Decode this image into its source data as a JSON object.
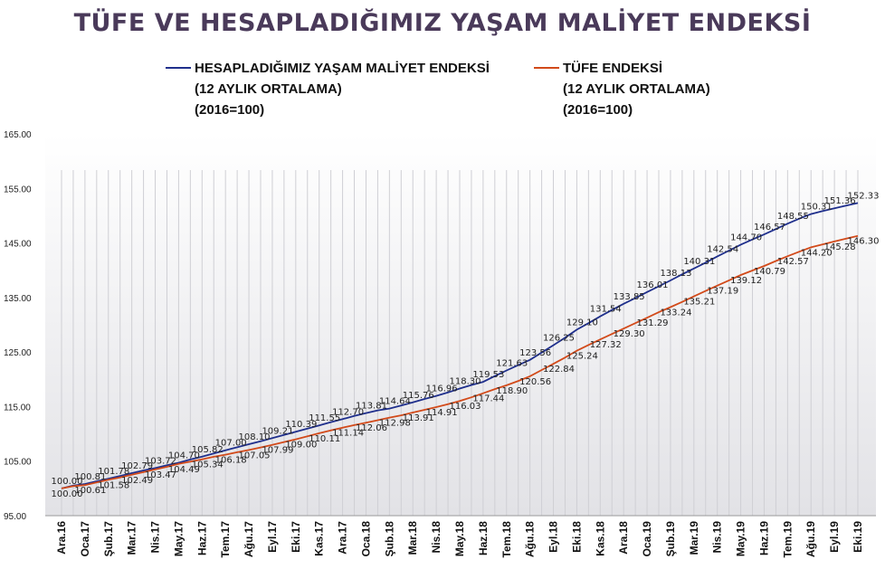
{
  "title": "TÜFE VE HESAPLADIĞIMIZ YAŞAM MALİYET ENDEKSİ",
  "colors": {
    "series_a": "#1f2f8c",
    "series_b": "#d24a1a",
    "title": "#4a3a5a"
  },
  "legend": {
    "series_a": {
      "line1": "HESAPLADIĞIMIZ YAŞAM MALİYET ENDEKSİ",
      "line2": "(12 AYLIK ORTALAMA)",
      "line3": "(2016=100)"
    },
    "series_b": {
      "line1": "TÜFE ENDEKSİ",
      "line2": "(12 AYLIK ORTALAMA)",
      "line3": "(2016=100)"
    }
  },
  "chart_data": {
    "type": "line",
    "title": "TÜFE VE HESAPLADIĞIMIZ YAŞAM MALİYET ENDEKSİ",
    "ylim": [
      95,
      165
    ],
    "yticks": [
      "95.00",
      "105.00",
      "115.00",
      "125.00",
      "135.00",
      "145.00",
      "155.00",
      "165.00"
    ],
    "ytick_values": [
      95,
      105,
      115,
      125,
      135,
      145,
      155,
      165
    ],
    "x_tick_labels": [
      "Ara.16",
      "Oca.17",
      "Şub.17",
      "Mar.17",
      "Nis.17",
      "May.17",
      "Haz.17",
      "Tem.17",
      "Ağu.17",
      "Eyl.17",
      "Eki.17",
      "Kas.17",
      "Ara.17",
      "Oca.18",
      "Şub.18",
      "Mar.18",
      "Nis.18",
      "May.18",
      "Haz.18",
      "Tem.18",
      "Ağu.18",
      "Eyl.18",
      "Eki.18",
      "Kas.18",
      "Ara.18",
      "Oca.19",
      "Şub.19",
      "Mar.19",
      "Nis.19",
      "May.19",
      "Haz.19",
      "Tem.19",
      "Ağu.19",
      "Eyl.19",
      "Eki.19"
    ],
    "x_label_every": 2,
    "grid": true,
    "legend_position": "top",
    "series": [
      {
        "name": "HESAPLADIĞIMIZ YAŞAM MALİYET ENDEKSİ (12 AYLIK ORTALAMA) (2016=100)",
        "color": "#1f2f8c",
        "values": [
          100.0,
          100.5,
          100.81,
          101.3,
          101.78,
          102.29,
          102.79,
          103.29,
          103.72,
          104.25,
          104.7,
          105.3,
          105.82,
          106.4,
          107.0,
          107.54,
          108.1,
          108.63,
          109.21,
          109.8,
          110.39,
          110.98,
          111.55,
          112.15,
          112.7,
          113.3,
          113.81,
          114.3,
          114.64,
          115.2,
          115.76,
          116.4,
          116.96,
          117.6,
          118.3,
          118.95,
          119.53,
          120.6,
          121.63,
          122.6,
          123.56,
          124.9,
          126.25,
          127.65,
          129.1,
          130.3,
          131.54,
          132.7,
          133.85,
          134.9,
          136.01,
          137.05,
          138.13,
          139.25,
          140.31,
          141.4,
          142.54,
          143.6,
          144.7,
          145.65,
          146.57,
          147.55,
          148.55,
          149.45,
          150.31,
          150.85,
          151.36,
          151.85,
          152.33
        ]
      },
      {
        "name": "TÜFE ENDEKSİ (12 AYLIK ORTALAMA) (2016=100)",
        "color": "#d24a1a",
        "values": [
          100.0,
          100.4,
          100.61,
          101.1,
          101.58,
          102.0,
          102.49,
          102.98,
          103.47,
          103.96,
          104.49,
          104.9,
          105.34,
          105.8,
          106.18,
          106.62,
          107.05,
          107.5,
          107.99,
          108.5,
          109.0,
          109.55,
          110.11,
          110.62,
          111.14,
          111.6,
          112.06,
          112.5,
          112.98,
          113.4,
          113.91,
          114.4,
          114.91,
          115.45,
          116.03,
          116.7,
          117.44,
          118.2,
          118.9,
          119.7,
          120.56,
          121.7,
          122.84,
          124.0,
          125.24,
          126.3,
          127.32,
          128.3,
          129.3,
          130.3,
          131.29,
          132.3,
          133.24,
          134.2,
          135.21,
          136.2,
          137.19,
          138.15,
          139.12,
          139.95,
          140.79,
          141.7,
          142.57,
          143.4,
          144.2,
          144.75,
          145.28,
          145.8,
          146.3
        ]
      }
    ]
  }
}
